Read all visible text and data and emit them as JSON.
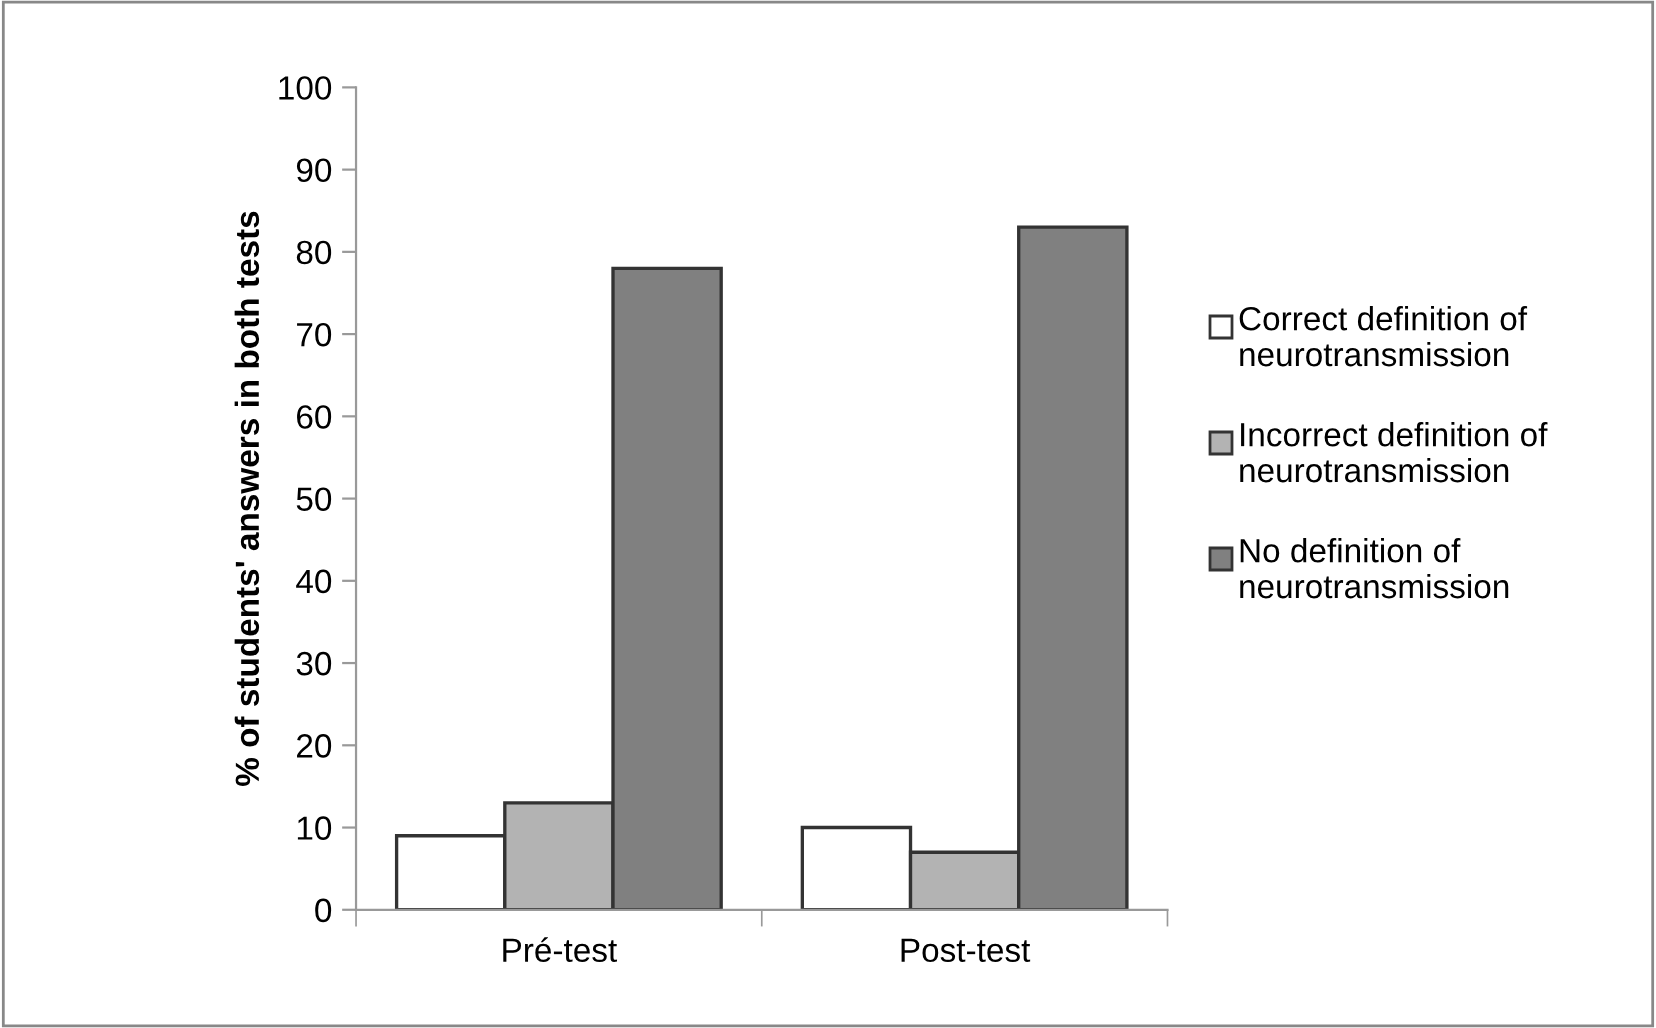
{
  "chart_data": {
    "type": "bar",
    "ylabel": "% of students' answers in both tests",
    "categories": [
      "Pré-test",
      "Post-test"
    ],
    "series": [
      {
        "name": "Correct definition of neurotransmission",
        "color": "#ffffff",
        "values": [
          9,
          10
        ]
      },
      {
        "name": "Incorrect definition of neurotransmission",
        "color": "#b3b3b3",
        "values": [
          13,
          7
        ]
      },
      {
        "name": "No definition of neurotransmission",
        "color": "#808080",
        "values": [
          78,
          83
        ]
      }
    ],
    "ylim": [
      0,
      100
    ],
    "yticks": [
      0,
      10,
      20,
      30,
      40,
      50,
      60,
      70,
      80,
      90,
      100
    ],
    "grid": false,
    "legend": "right"
  }
}
